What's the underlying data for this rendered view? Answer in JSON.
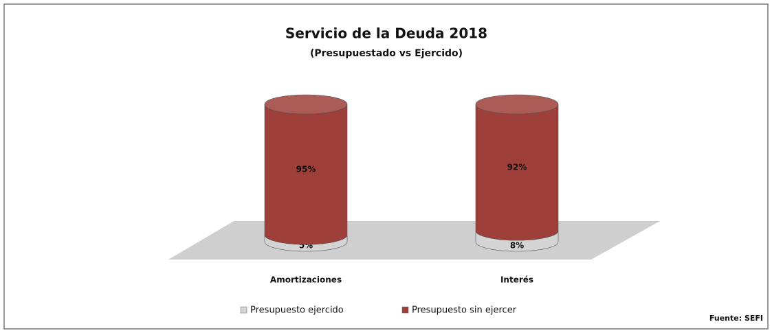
{
  "chart_data": {
    "type": "bar",
    "stacked": true,
    "title": "Servicio de la Deuda 2018",
    "subtitle": "(Presupuestado vs Ejercido)",
    "categories": [
      "Amortizaciones",
      "Interés"
    ],
    "series": [
      {
        "name": "Presupuesto ejercido",
        "color": "#d4d4d4",
        "values": [
          5,
          8
        ],
        "value_labels": [
          "5%",
          "8%"
        ]
      },
      {
        "name": "Presupuesto sin ejercer",
        "color": "#9e3f3a",
        "values": [
          95,
          92
        ],
        "value_labels": [
          "95%",
          "92%"
        ]
      }
    ],
    "source": "Fuente: SEFI"
  }
}
